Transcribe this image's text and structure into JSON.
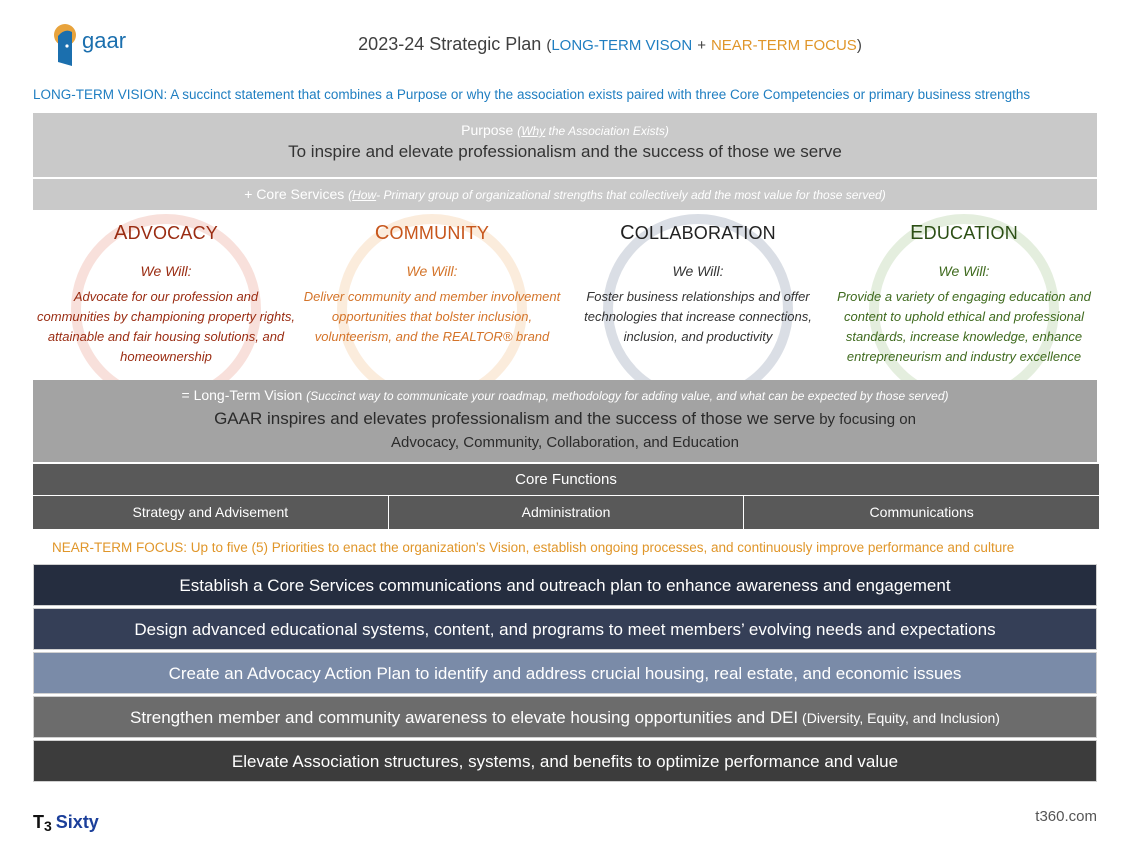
{
  "header": {
    "logo_text": "gaar",
    "title_main": "2023-24 Strategic Plan",
    "title_open": "(",
    "title_ltv": "LONG-TERM VISON",
    "title_plus": "+",
    "title_ntf": "NEAR-TERM FOCUS",
    "title_close": ")"
  },
  "long_term_vision_line": "LONG-TERM VISION:  A succinct statement that combines a Purpose or why the association exists paired with three Core Competencies or primary business strengths",
  "purpose": {
    "label": "Purpose",
    "label_note_why": "Why",
    "label_note_rest": " the Association Exists)",
    "label_note_open": "(",
    "text": "To inspire and elevate professionalism and the success of those we serve"
  },
  "core_services": {
    "label": "+ Core Services",
    "note_open": "(",
    "note_how": "How",
    "note_rest": "- Primary group of organizational strengths that collectively add the most value for those served)"
  },
  "pillars": [
    {
      "title_cap": "A",
      "title_rest": "DVOCACY",
      "we_will": "We Will:",
      "text": "Advocate for our profession and communities by championing property rights, attainable and fair housing solutions, and homeownership",
      "color": "#9a2c12"
    },
    {
      "title_cap": "C",
      "title_rest": "OMMUNITY",
      "we_will": "We Will:",
      "text": "Deliver community and member involvement opportunities that bolster inclusion, volunteerism, and the REALTOR® brand",
      "color": "#d4742a"
    },
    {
      "title_cap": "C",
      "title_rest": "OLLABORATION",
      "we_will": "We Will:",
      "text": "Foster business relationships and offer technologies that increase connections, inclusion, and productivity",
      "color": "#333333"
    },
    {
      "title_cap": "E",
      "title_rest": "DUCATION",
      "we_will": "We Will:",
      "text": "Provide a variety of engaging education and content to uphold ethical and professional standards, increase knowledge, enhance entrepreneurism and industry excellence",
      "color": "#3f6a1e"
    }
  ],
  "vision": {
    "label": "= Long-Term Vision",
    "label_note": "(Succinct way to communicate your roadmap, methodology for adding value, and what can be expected by those served)",
    "text1": "GAAR inspires and elevates professionalism and the success of those we serve",
    "text1_small": " by focusing on",
    "text2": "Advocacy, Community, Collaboration, and Education"
  },
  "core_functions": {
    "label": "Core Functions",
    "items": [
      "Strategy and Advisement",
      "Administration",
      "Communications"
    ]
  },
  "near_term_focus_line": "NEAR-TERM FOCUS:  Up to five (5) Priorities to enact the organization’s Vision, establish ongoing processes, and continuously improve performance and culture",
  "priorities": [
    {
      "text": "Establish a Core Services communications and outreach plan to enhance awareness and engagement",
      "small": "",
      "color": "#252d3f"
    },
    {
      "text": "Design advanced educational systems, content, and programs to meet members’ evolving needs and expectations",
      "small": "",
      "color": "#353f57"
    },
    {
      "text": "Create an Advocacy Action Plan to identify and address crucial housing, real estate, and economic issues",
      "small": "",
      "color": "#7a8ba8"
    },
    {
      "text": "Strengthen member and community awareness to elevate housing opportunities and DEI",
      "small": " (Diversity, Equity, and Inclusion)",
      "color": "#6c6c6c"
    },
    {
      "text": "Elevate Association structures, systems, and benefits to optimize performance and value",
      "small": "",
      "color": "#3c3c3c"
    }
  ],
  "footer": {
    "brand_t": "T",
    "brand_3": "3",
    "brand_sixty": "Sixty",
    "url": "t360.com"
  }
}
